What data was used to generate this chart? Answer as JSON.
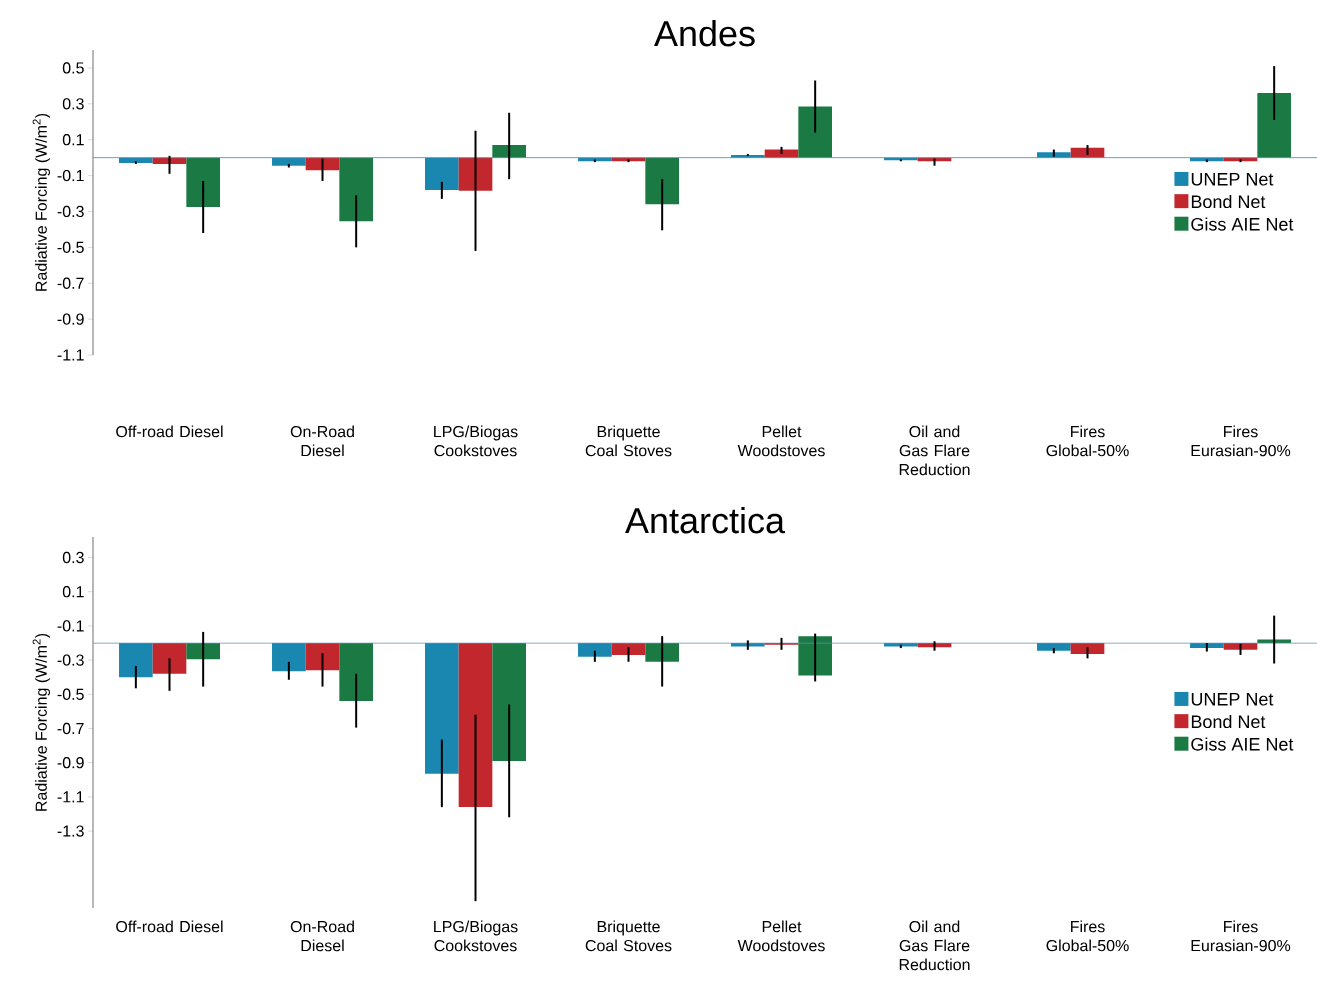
{
  "chart_data": [
    {
      "type": "bar",
      "title": "Andes",
      "ylabel": "Radiative Forcing (W/m$^{2}$)",
      "categories": [
        "Off-road Diesel",
        "On-Road Diesel",
        "LPG/Biogas Cookstoves",
        "Briquette Coal Stoves",
        "Pellet Woodstoves",
        "Oil and Gas Flare Reduction",
        "Fires Global-50%",
        "Fires Eurasian-90%"
      ],
      "series": [
        {
          "name": "UNEP Net",
          "color": "#1a87b0",
          "values": [
            -0.03,
            -0.045,
            -0.18,
            -0.02,
            0.015,
            -0.015,
            0.03,
            -0.02
          ],
          "errors": [
            [
              -0.035,
              -0.02
            ],
            [
              -0.055,
              -0.035
            ],
            [
              -0.23,
              -0.135
            ],
            [
              -0.025,
              -0.01
            ],
            [
              0.01,
              0.02
            ],
            [
              -0.02,
              -0.01
            ],
            [
              0.005,
              0.045
            ],
            [
              -0.025,
              -0.01
            ]
          ]
        },
        {
          "name": "Bond Net",
          "color": "#c1272d",
          "values": [
            -0.035,
            -0.07,
            -0.185,
            -0.02,
            0.045,
            -0.02,
            0.055,
            -0.02
          ],
          "errors": [
            [
              -0.09,
              0.01
            ],
            [
              -0.13,
              -0.005
            ],
            [
              -0.52,
              0.15
            ],
            [
              -0.025,
              -0.01
            ],
            [
              0.02,
              0.06
            ],
            [
              -0.045,
              -0.005
            ],
            [
              0.015,
              0.07
            ],
            [
              -0.025,
              -0.01
            ]
          ]
        },
        {
          "name": "Giss AIE Net",
          "color": "#1b7a43",
          "values": [
            -0.275,
            -0.355,
            0.07,
            -0.26,
            0.285,
            null,
            null,
            0.36
          ],
          "errors": [
            [
              -0.42,
              -0.13
            ],
            [
              -0.5,
              -0.21
            ],
            [
              -0.12,
              0.25
            ],
            [
              -0.405,
              -0.12
            ],
            [
              0.14,
              0.43
            ],
            null,
            null,
            [
              0.21,
              0.51
            ]
          ]
        }
      ],
      "ylim": [
        -1.1,
        0.6
      ],
      "yticks": [
        -1.1,
        -0.9,
        -0.7,
        -0.5,
        -0.3,
        -0.1,
        0.1,
        0.3,
        0.5
      ],
      "ref_lines": [
        {
          "axis": "y",
          "value": 0,
          "color": "#5b8db8"
        }
      ],
      "legend": "right"
    },
    {
      "type": "bar",
      "title": "Antarctica",
      "ylabel": "Radiative Forcing (W/m$^{2}$)",
      "categories": [
        "Off-road Diesel",
        "On-Road Diesel",
        "LPG/Biogas Cookstoves",
        "Briquette Coal Stoves",
        "Pellet Woodstoves",
        "Oil and Gas Flare Reduction",
        "Fires Global-50%",
        "Fires Eurasian-90%"
      ],
      "series": [
        {
          "name": "UNEP Net",
          "color": "#1a87b0",
          "base": [
            -0.2,
            -0.2,
            -0.2,
            -0.2,
            -0.2,
            -0.2,
            -0.2,
            -0.2
          ],
          "values": [
            -0.2,
            -0.165,
            -0.765,
            -0.08,
            -0.02,
            -0.02,
            -0.045,
            -0.03
          ],
          "errors": [
            [
              -0.465,
              -0.335
            ],
            [
              -0.415,
              -0.31
            ],
            [
              -1.16,
              -0.765
            ],
            [
              -0.31,
              -0.245
            ],
            [
              -0.24,
              -0.185
            ],
            [
              -0.23,
              -0.21
            ],
            [
              -0.26,
              -0.23
            ],
            [
              -0.25,
              -0.2
            ]
          ]
        },
        {
          "name": "Bond Net",
          "color": "#c1272d",
          "base": [
            -0.2,
            -0.2,
            -0.2,
            -0.2,
            -0.2,
            -0.2,
            -0.2,
            -0.2
          ],
          "values": [
            -0.18,
            -0.16,
            -0.96,
            -0.07,
            -0.01,
            -0.025,
            -0.065,
            -0.04
          ],
          "errors": [
            [
              -0.48,
              -0.29
            ],
            [
              -0.455,
              -0.26
            ],
            [
              -1.71,
              -0.62
            ],
            [
              -0.31,
              -0.225
            ],
            [
              -0.24,
              -0.17
            ],
            [
              -0.245,
              -0.19
            ],
            [
              -0.29,
              -0.225
            ],
            [
              -0.27,
              -0.205
            ]
          ]
        },
        {
          "name": "Giss AIE Net",
          "color": "#1b7a43",
          "base": [
            -0.2,
            -0.2,
            -0.2,
            -0.2,
            -0.16,
            null,
            null,
            -0.2
          ],
          "values": [
            -0.095,
            -0.34,
            -0.69,
            -0.11,
            -0.23,
            null,
            null,
            0.02
          ],
          "errors": [
            [
              -0.455,
              -0.135
            ],
            [
              -0.695,
              -0.38
            ],
            [
              -1.22,
              -0.56
            ],
            [
              -0.455,
              -0.16
            ],
            [
              -0.425,
              -0.145
            ],
            null,
            null,
            [
              -0.32,
              -0.04
            ]
          ]
        }
      ],
      "ylim": [
        -1.75,
        0.42
      ],
      "yticks": [
        -1.3,
        -1.1,
        -0.9,
        -0.7,
        -0.5,
        -0.3,
        -0.1,
        0.1,
        0.3
      ],
      "ref_lines": [
        {
          "axis": "y",
          "value": -0.2,
          "color": "#5b8db8"
        }
      ],
      "legend": "right"
    }
  ]
}
